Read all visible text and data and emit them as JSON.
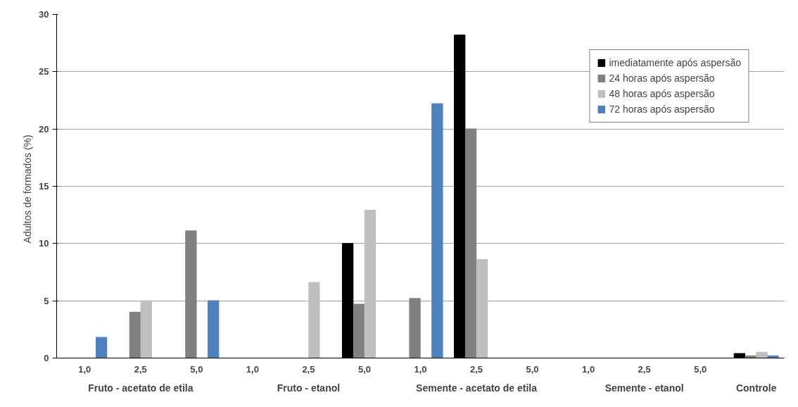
{
  "chart_data": {
    "type": "bar",
    "ylabel": "Adultos  de formados  (%)",
    "categories": [
      "1,0",
      "2,5",
      "5,0",
      "1,0",
      "2,5",
      "5,0",
      "1,0",
      "2,5",
      "5,0",
      "1,0",
      "2,5",
      "5,0",
      null
    ],
    "annotations": [
      "Fruto - acetato de etila",
      "Fruto - etanol",
      "Semente - acetato de etila",
      "Semente - etanol",
      "Controle"
    ],
    "series": [
      {
        "name": "imediatamente após aspersão",
        "color": "#000000",
        "values": [
          0,
          0,
          0,
          0,
          0,
          10.0,
          0,
          28.2,
          0,
          0,
          0,
          0,
          0.4
        ]
      },
      {
        "name": "24 horas após aspersão",
        "color": "#808080",
        "values": [
          0,
          4.0,
          11.1,
          0,
          0,
          4.7,
          5.2,
          20.0,
          0,
          0,
          0,
          0,
          0.2
        ]
      },
      {
        "name": "48 horas após aspersão",
        "color": "#bfbfbf",
        "values": [
          0,
          5.0,
          0,
          0,
          6.6,
          12.9,
          0,
          8.6,
          0,
          0,
          0,
          0,
          0.5
        ]
      },
      {
        "name": "72 horas após aspersão",
        "color": "#4f81bd",
        "values": [
          1.8,
          0,
          5.0,
          0,
          0,
          0,
          22.2,
          0,
          0,
          0,
          0,
          0,
          0.2
        ]
      }
    ],
    "ylim": [
      0,
      30
    ],
    "yticks": [
      0,
      5,
      10,
      15,
      20,
      25,
      30
    ],
    "grid": "y",
    "legend": "top right"
  }
}
